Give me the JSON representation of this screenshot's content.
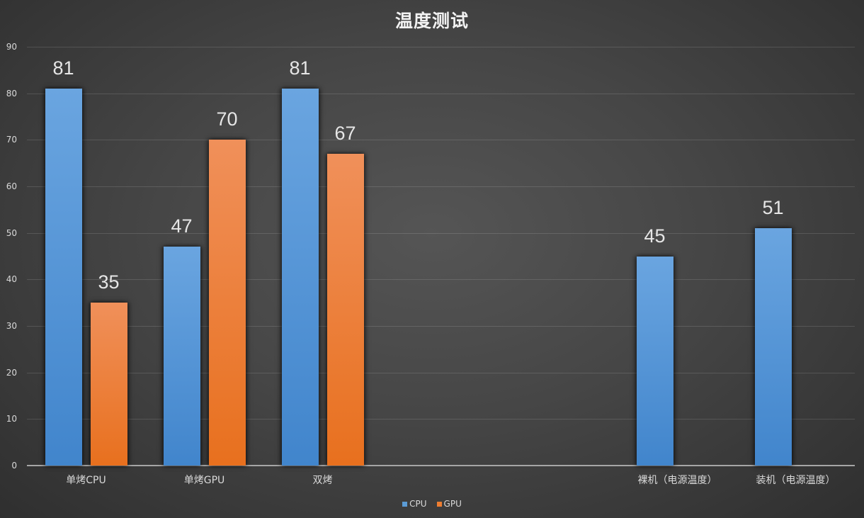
{
  "chart_data": {
    "type": "bar",
    "title": "温度测试",
    "xlabel": "",
    "ylabel": "",
    "ylim": [
      0,
      90
    ],
    "yticks": [
      0,
      10,
      20,
      30,
      40,
      50,
      60,
      70,
      80,
      90
    ],
    "grid": true,
    "legend_position": "bottom",
    "categories": [
      "单烤CPU",
      "单烤GPU",
      "双烤",
      "",
      "",
      "裸机（电源温度）",
      "装机（电源温度）"
    ],
    "series": [
      {
        "name": "CPU",
        "color": "#5b9bd5",
        "values": [
          81,
          47,
          81,
          null,
          null,
          45,
          51
        ]
      },
      {
        "name": "GPU",
        "color": "#ed7d31",
        "values": [
          35,
          70,
          67,
          null,
          null,
          null,
          null
        ]
      }
    ],
    "data_labels": true
  },
  "title": "温度测试",
  "legend": [
    {
      "label": "CPU",
      "color": "#5b9bd5"
    },
    {
      "label": "GPU",
      "color": "#ed7d31"
    }
  ]
}
